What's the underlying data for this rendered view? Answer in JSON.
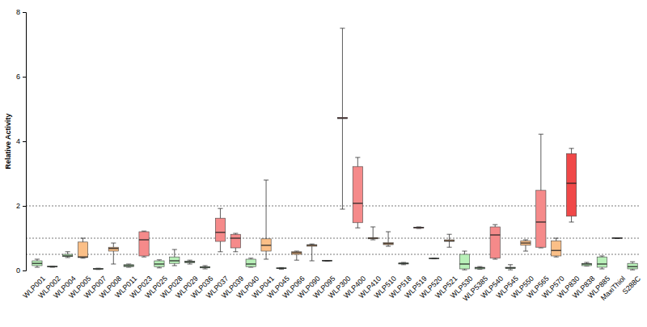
{
  "chart_data": {
    "type": "box",
    "y_label": "Relative Activity",
    "categories": [
      "WLP001",
      "WLP002",
      "WLP004",
      "WLP005",
      "WLP007",
      "WLP008",
      "WLP011",
      "WLP023",
      "WLP025",
      "WLP028",
      "WLP029",
      "WLP036",
      "WLP037",
      "WLP039",
      "WLP040",
      "WLP041",
      "WLP045",
      "WLP066",
      "WLP090",
      "WLP095",
      "WLP300",
      "WLP400",
      "WLP410",
      "WLP510",
      "WLP518",
      "WLP519",
      "WLP520",
      "WLP521",
      "WLP530",
      "WLP5385",
      "WLP540",
      "WLP545",
      "WLP550",
      "WLP565",
      "WLP570",
      "WLP830",
      "WLP838",
      "WLP885",
      "MaxiThiol",
      "S288C"
    ],
    "min": [
      0.1,
      0.1,
      0.4,
      0.38,
      0.03,
      0.2,
      0.1,
      0.42,
      0.08,
      0.15,
      0.2,
      0.05,
      0.58,
      0.58,
      0.1,
      0.35,
      0.04,
      0.32,
      0.3,
      0.29,
      1.9,
      1.32,
      0.95,
      0.75,
      0.18,
      1.3,
      0.36,
      0.72,
      0.02,
      0.04,
      0.35,
      0.02,
      0.6,
      0.7,
      0.42,
      1.5,
      0.14,
      0.05,
      0.99,
      0.02
    ],
    "q1": [
      0.15,
      0.11,
      0.43,
      0.4,
      0.04,
      0.6,
      0.12,
      0.45,
      0.12,
      0.22,
      0.24,
      0.08,
      0.9,
      0.7,
      0.12,
      0.6,
      0.06,
      0.5,
      0.75,
      0.3,
      4.7,
      1.48,
      0.98,
      0.8,
      0.2,
      1.31,
      0.37,
      0.9,
      0.05,
      0.05,
      0.38,
      0.06,
      0.78,
      0.72,
      0.45,
      1.68,
      0.15,
      0.1,
      1.0,
      0.05
    ],
    "median": [
      0.22,
      0.12,
      0.45,
      0.42,
      0.05,
      0.68,
      0.15,
      0.95,
      0.2,
      0.3,
      0.27,
      0.1,
      1.18,
      1.0,
      0.2,
      0.78,
      0.07,
      0.55,
      0.78,
      0.3,
      4.72,
      2.08,
      1.0,
      0.83,
      0.22,
      1.33,
      0.37,
      0.92,
      0.2,
      0.08,
      1.1,
      0.08,
      0.85,
      1.5,
      0.62,
      2.7,
      0.2,
      0.2,
      1.0,
      0.12
    ],
    "q3": [
      0.3,
      0.13,
      0.5,
      0.88,
      0.06,
      0.72,
      0.18,
      1.2,
      0.3,
      0.42,
      0.29,
      0.12,
      1.62,
      1.12,
      0.35,
      0.98,
      0.08,
      0.58,
      0.8,
      0.31,
      4.74,
      3.22,
      1.02,
      0.86,
      0.23,
      1.34,
      0.38,
      0.95,
      0.5,
      0.1,
      1.35,
      0.1,
      0.92,
      2.48,
      0.92,
      3.62,
      0.22,
      0.42,
      1.01,
      0.22
    ],
    "max": [
      0.35,
      0.13,
      0.58,
      1.0,
      0.07,
      0.85,
      0.2,
      1.22,
      0.33,
      0.65,
      0.32,
      0.15,
      1.92,
      1.15,
      0.38,
      2.8,
      0.09,
      0.6,
      0.82,
      0.31,
      7.5,
      3.5,
      1.35,
      1.2,
      0.25,
      1.35,
      0.38,
      1.12,
      0.6,
      0.12,
      1.42,
      0.18,
      0.95,
      4.22,
      1.0,
      3.78,
      0.25,
      0.45,
      1.01,
      0.27
    ],
    "colors": [
      "#b8f0b8",
      "#b8f0b8",
      "#b8f0b8",
      "#fbbf87",
      "#b8f0b8",
      "#fbbf87",
      "#b8f0b8",
      "#f58a8a",
      "#b8f0b8",
      "#b8f0b8",
      "#b8f0b8",
      "#b8f0b8",
      "#f58a8a",
      "#f58a8a",
      "#b8f0b8",
      "#fbbf87",
      "#b8f0b8",
      "#fbbf87",
      "#fbbf87",
      "#b8f0b8",
      "#f58a8a",
      "#f58a8a",
      "#fbbf87",
      "#fbbf87",
      "#b8f0b8",
      "#f58a8a",
      "#b8f0b8",
      "#fbbf87",
      "#b8f0b8",
      "#b8f0b8",
      "#f58a8a",
      "#b8f0b8",
      "#fbbf87",
      "#f58a8a",
      "#fbbf87",
      "#f04848",
      "#b8f0b8",
      "#b8f0b8",
      "#fbbf87",
      "#b8f0b8"
    ],
    "reference_lines": [
      0.5,
      1,
      2
    ],
    "ylim": [
      0,
      8
    ],
    "yticks": [
      0,
      2,
      4,
      6,
      8
    ],
    "grid": false
  }
}
